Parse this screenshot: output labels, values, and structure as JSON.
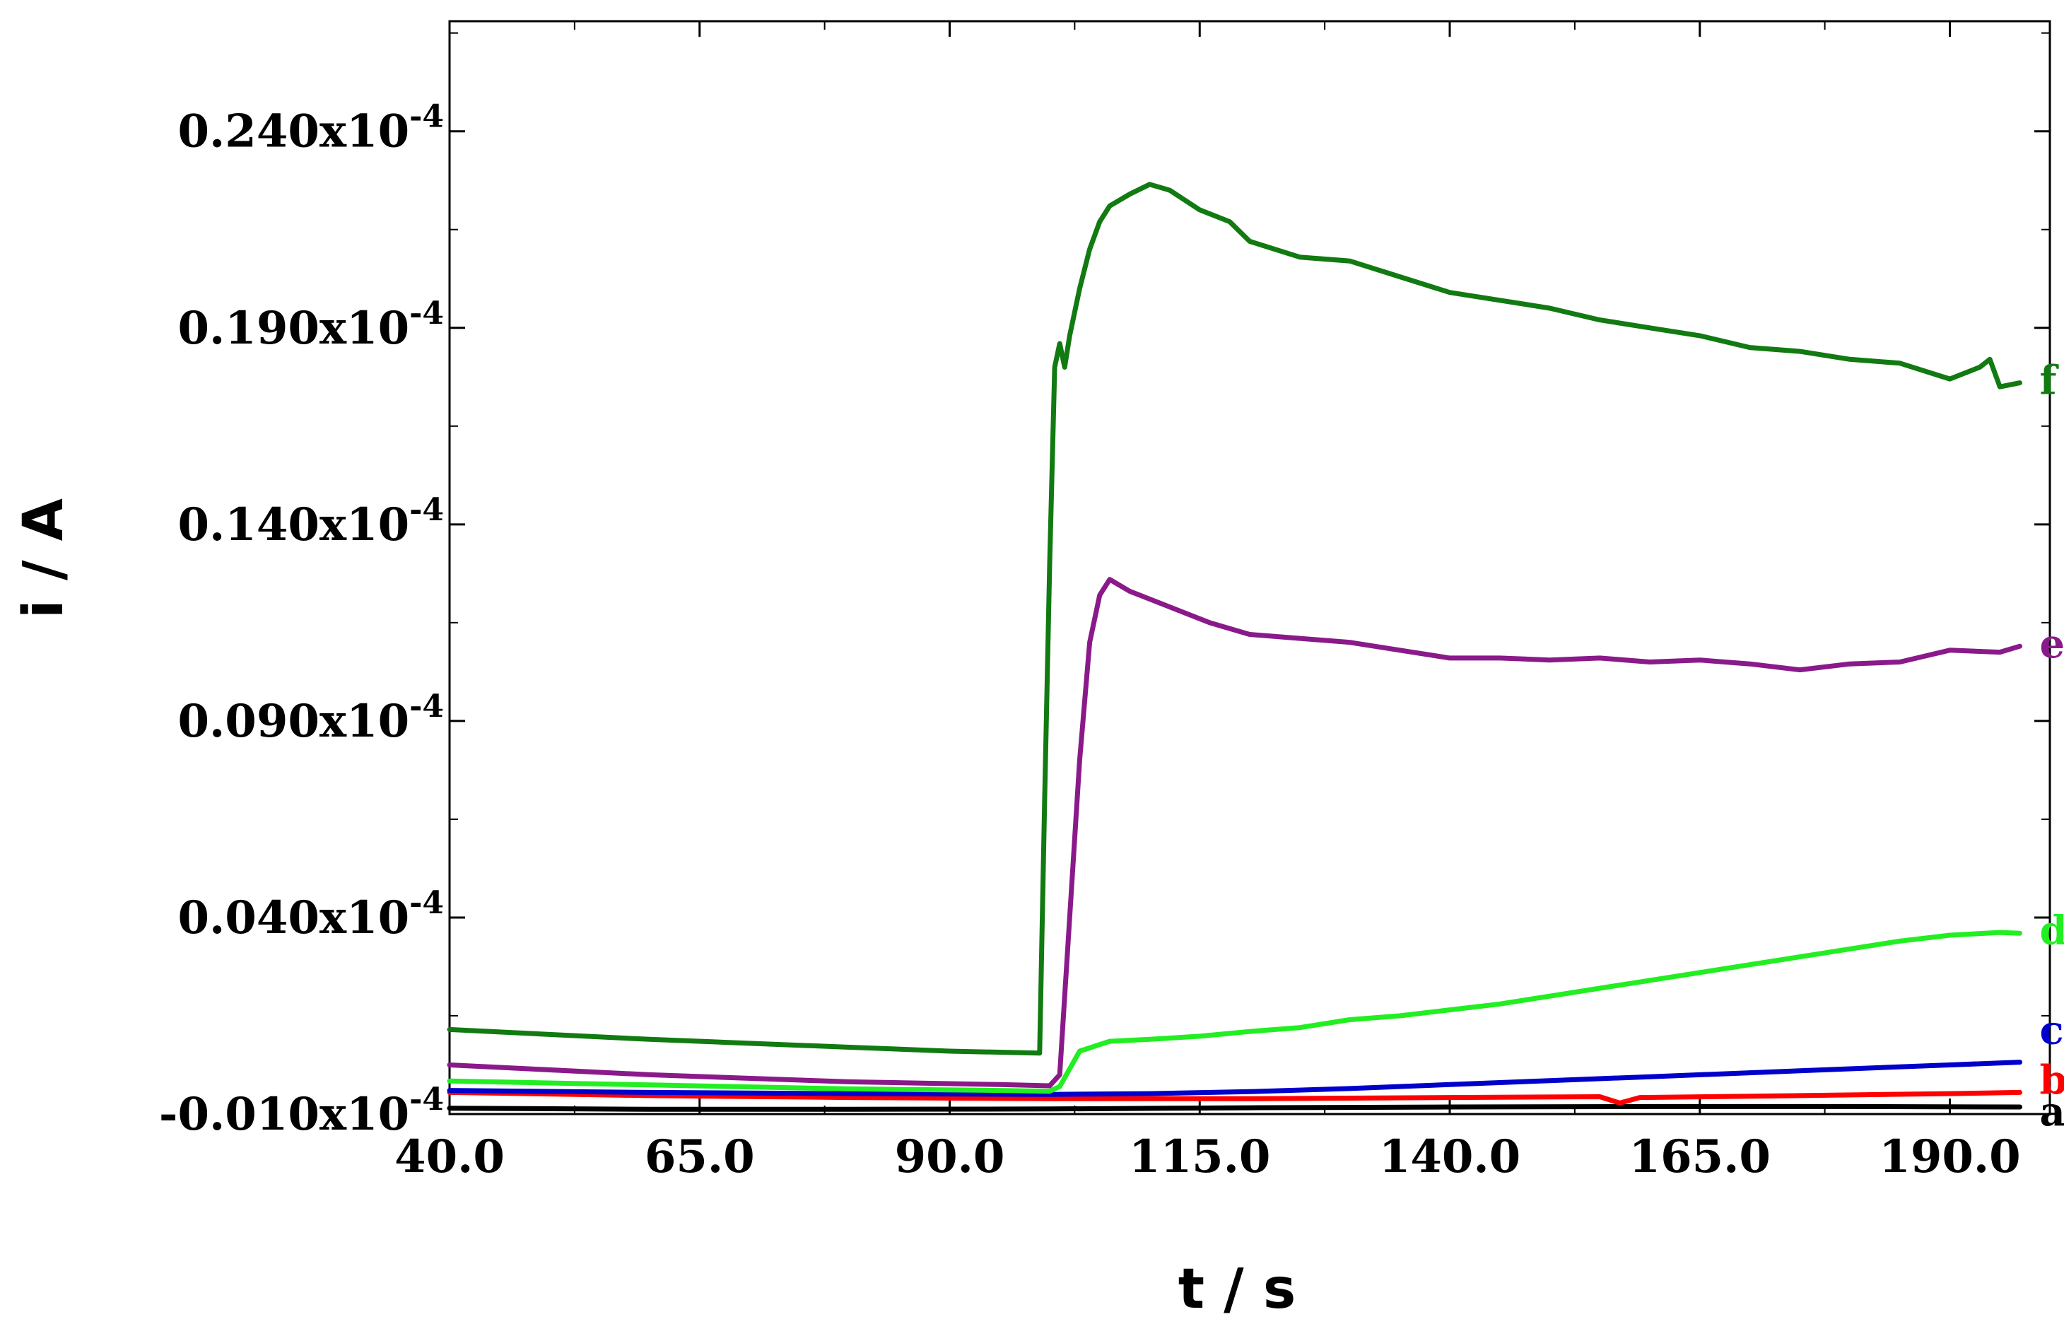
{
  "chart_data": {
    "type": "line",
    "xlabel": "t / s",
    "ylabel": "i / A",
    "xlim": [
      40,
      200
    ],
    "ylim": [
      -0.01,
      0.268
    ],
    "y_multiplier_label": "x10",
    "y_multiplier_exponent": "-4",
    "x_ticks": [
      40.0,
      65.0,
      90.0,
      115.0,
      140.0,
      165.0,
      190.0
    ],
    "x_tick_labels": [
      "40.0",
      "65.0",
      "90.0",
      "115.0",
      "140.0",
      "165.0",
      "190.0"
    ],
    "y_ticks": [
      -0.01,
      0.04,
      0.09,
      0.14,
      0.19,
      0.24
    ],
    "y_tick_labels": [
      "-0.010",
      "0.040",
      "0.090",
      "0.140",
      "0.190",
      "0.240"
    ],
    "grid": false,
    "legend": "inline labels at right end of each curve",
    "series": [
      {
        "name": "a",
        "color": "#000000",
        "points": [
          [
            40,
            -0.0085
          ],
          [
            60,
            -0.0088
          ],
          [
            80,
            -0.0088
          ],
          [
            100,
            -0.0087
          ],
          [
            120,
            -0.0084
          ],
          [
            140,
            -0.0082
          ],
          [
            160,
            -0.0081
          ],
          [
            180,
            -0.0081
          ],
          [
            197,
            -0.0082
          ]
        ]
      },
      {
        "name": "b",
        "color": "#ff0000",
        "points": [
          [
            40,
            -0.0045
          ],
          [
            60,
            -0.0053
          ],
          [
            80,
            -0.0058
          ],
          [
            100,
            -0.0061
          ],
          [
            120,
            -0.0061
          ],
          [
            140,
            -0.0058
          ],
          [
            155,
            -0.0056
          ],
          [
            157,
            -0.0072
          ],
          [
            159,
            -0.0058
          ],
          [
            175,
            -0.0053
          ],
          [
            190,
            -0.0048
          ],
          [
            197,
            -0.0045
          ]
        ]
      },
      {
        "name": "c",
        "color": "#0000cc",
        "points": [
          [
            40,
            -0.004
          ],
          [
            60,
            -0.0045
          ],
          [
            80,
            -0.0048
          ],
          [
            100,
            -0.005
          ],
          [
            110,
            -0.0048
          ],
          [
            120,
            -0.0043
          ],
          [
            130,
            -0.0035
          ],
          [
            140,
            -0.0025
          ],
          [
            150,
            -0.0015
          ],
          [
            160,
            -0.0005
          ],
          [
            170,
            0.0005
          ],
          [
            180,
            0.0015
          ],
          [
            190,
            0.0025
          ],
          [
            197,
            0.0032
          ]
        ]
      },
      {
        "name": "d",
        "color": "#22ee22",
        "points": [
          [
            40,
            -0.0016
          ],
          [
            60,
            -0.0026
          ],
          [
            80,
            -0.0036
          ],
          [
            95,
            -0.004
          ],
          [
            100,
            -0.0042
          ],
          [
            101,
            -0.003
          ],
          [
            103,
            0.006
          ],
          [
            106,
            0.0085
          ],
          [
            110,
            0.009
          ],
          [
            115,
            0.0098
          ],
          [
            120,
            0.011
          ],
          [
            125,
            0.012
          ],
          [
            130,
            0.014
          ],
          [
            135,
            0.015
          ],
          [
            140,
            0.0165
          ],
          [
            145,
            0.018
          ],
          [
            150,
            0.02
          ],
          [
            155,
            0.022
          ],
          [
            160,
            0.024
          ],
          [
            165,
            0.026
          ],
          [
            170,
            0.028
          ],
          [
            175,
            0.03
          ],
          [
            180,
            0.032
          ],
          [
            185,
            0.034
          ],
          [
            190,
            0.0355
          ],
          [
            195,
            0.0362
          ],
          [
            197,
            0.036
          ]
        ]
      },
      {
        "name": "e",
        "color": "#8a1a8a",
        "points": [
          [
            40,
            0.0025
          ],
          [
            60,
            0.0
          ],
          [
            80,
            -0.0018
          ],
          [
            95,
            -0.0025
          ],
          [
            100,
            -0.0028
          ],
          [
            101,
            0.0
          ],
          [
            102,
            0.04
          ],
          [
            103,
            0.08
          ],
          [
            104,
            0.11
          ],
          [
            105,
            0.122
          ],
          [
            106,
            0.126
          ],
          [
            108,
            0.123
          ],
          [
            112,
            0.119
          ],
          [
            116,
            0.115
          ],
          [
            120,
            0.112
          ],
          [
            125,
            0.111
          ],
          [
            130,
            0.11
          ],
          [
            135,
            0.108
          ],
          [
            140,
            0.106
          ],
          [
            145,
            0.106
          ],
          [
            150,
            0.1055
          ],
          [
            155,
            0.106
          ],
          [
            160,
            0.105
          ],
          [
            165,
            0.1055
          ],
          [
            170,
            0.1045
          ],
          [
            175,
            0.103
          ],
          [
            180,
            0.1045
          ],
          [
            185,
            0.105
          ],
          [
            190,
            0.108
          ],
          [
            195,
            0.1075
          ],
          [
            197,
            0.109
          ]
        ]
      },
      {
        "name": "f",
        "color": "#117a11",
        "points": [
          [
            40,
            0.0115
          ],
          [
            60,
            0.009
          ],
          [
            80,
            0.007
          ],
          [
            90,
            0.006
          ],
          [
            99,
            0.0055
          ],
          [
            99.5,
            0.07
          ],
          [
            100,
            0.13
          ],
          [
            100.5,
            0.18
          ],
          [
            101,
            0.186
          ],
          [
            101.5,
            0.18
          ],
          [
            102,
            0.188
          ],
          [
            103,
            0.2
          ],
          [
            104,
            0.21
          ],
          [
            105,
            0.217
          ],
          [
            106,
            0.221
          ],
          [
            108,
            0.224
          ],
          [
            110,
            0.2265
          ],
          [
            112,
            0.225
          ],
          [
            115,
            0.22
          ],
          [
            118,
            0.217
          ],
          [
            120,
            0.212
          ],
          [
            125,
            0.208
          ],
          [
            130,
            0.207
          ],
          [
            135,
            0.203
          ],
          [
            140,
            0.199
          ],
          [
            145,
            0.197
          ],
          [
            150,
            0.195
          ],
          [
            155,
            0.192
          ],
          [
            160,
            0.19
          ],
          [
            165,
            0.188
          ],
          [
            170,
            0.185
          ],
          [
            175,
            0.184
          ],
          [
            180,
            0.182
          ],
          [
            185,
            0.181
          ],
          [
            190,
            0.177
          ],
          [
            193,
            0.18
          ],
          [
            194,
            0.182
          ],
          [
            195,
            0.175
          ],
          [
            197,
            0.176
          ]
        ]
      }
    ]
  }
}
